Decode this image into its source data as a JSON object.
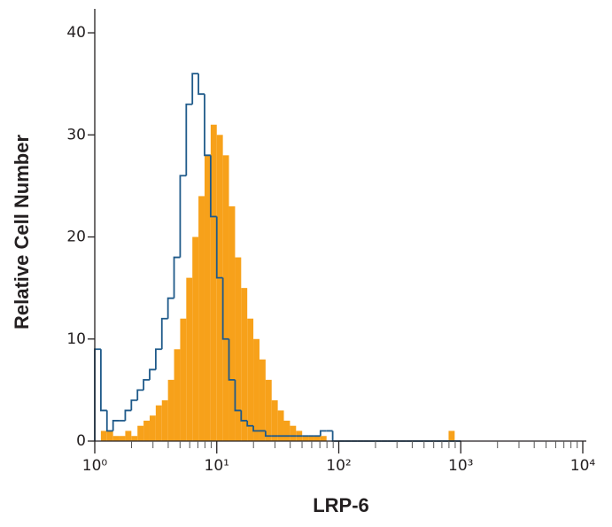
{
  "chart_data": {
    "type": "histogram",
    "xlabel": "LRP-6",
    "ylabel": "Relative Cell Number",
    "xscale": "log",
    "xlim": [
      1,
      10000
    ],
    "xticks": [
      {
        "value": 1,
        "label": "10⁰"
      },
      {
        "value": 10,
        "label": "10¹"
      },
      {
        "value": 100,
        "label": "10²"
      },
      {
        "value": 1000,
        "label": "10³"
      },
      {
        "value": 10000,
        "label": "10⁴"
      }
    ],
    "ylim": [
      0,
      42
    ],
    "yticks": [
      0,
      10,
      20,
      30,
      40
    ],
    "bins": [
      1,
      1.122,
      1.259,
      1.413,
      1.585,
      1.778,
      1.995,
      2.239,
      2.512,
      2.818,
      3.162,
      3.548,
      3.981,
      4.467,
      5.012,
      5.623,
      6.31,
      7.079,
      7.943,
      8.913,
      10,
      11.22,
      12.59,
      14.13,
      15.85,
      17.78,
      19.95,
      22.39,
      25.12,
      28.18,
      31.62,
      35.48,
      39.81,
      44.67,
      50.12,
      56.23,
      63.1,
      70.79,
      79.43,
      89.13,
      100,
      112.2,
      125.9,
      141.3,
      158.5,
      177.8,
      199.5,
      223.9,
      251.2,
      281.8,
      316.2,
      354.8,
      398.1,
      446.7,
      501.2,
      562.3,
      631,
      707.9,
      794.3,
      891.3,
      1000
    ],
    "series": [
      {
        "style": "filled",
        "color": "#f7a11a",
        "values": [
          0,
          1,
          1,
          0.5,
          0.5,
          1,
          0.5,
          1.5,
          2,
          2.5,
          3.5,
          4,
          6,
          9,
          12,
          16,
          20,
          24,
          28,
          31,
          30,
          28,
          23,
          18,
          15,
          12,
          10,
          8,
          6,
          4,
          3,
          2,
          1.5,
          1,
          0.5,
          0.5,
          0.5,
          0.5,
          0,
          0,
          0,
          0,
          0,
          0,
          0,
          0,
          0,
          0,
          0,
          0,
          0,
          0,
          0,
          0,
          0,
          0,
          0,
          0,
          1,
          0
        ]
      },
      {
        "style": "step",
        "color": "#1f5a8a",
        "values": [
          9,
          3,
          1,
          2,
          2,
          3,
          4,
          5,
          6,
          7,
          9,
          12,
          14,
          18,
          26,
          33,
          36,
          34,
          28,
          22,
          16,
          10,
          6,
          3,
          2,
          1.5,
          1,
          1,
          0.5,
          0.5,
          0.5,
          0.5,
          0.5,
          0.5,
          0.5,
          0.5,
          0.5,
          1,
          1,
          0,
          0,
          0,
          0,
          0,
          0,
          0,
          0,
          0,
          0,
          0,
          0,
          0,
          0,
          0,
          0,
          0,
          0,
          0,
          0,
          0
        ]
      }
    ]
  }
}
